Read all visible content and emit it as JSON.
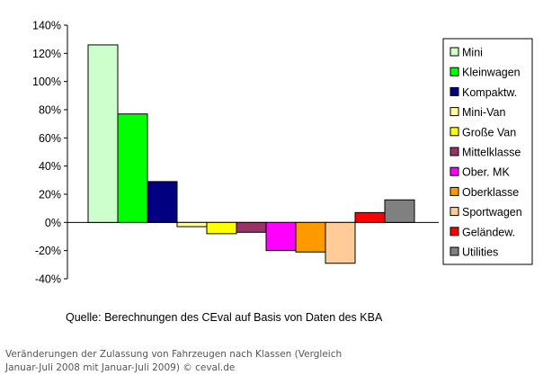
{
  "chart_data": {
    "type": "bar",
    "categories": [
      "Mini",
      "Kleinwagen",
      "Kompaktw.",
      "Mini-Van",
      "Große Van",
      "Mittelklasse",
      "Ober. MK",
      "Oberklasse",
      "Sportwagen",
      "Geländew.",
      "Utilities"
    ],
    "values": [
      126,
      77,
      29,
      -3,
      -8,
      -7,
      -20,
      -21,
      -29,
      7,
      16
    ],
    "colors": [
      "#ccffcc",
      "#00ff00",
      "#000080",
      "#ffff99",
      "#ffff00",
      "#993366",
      "#ff00ff",
      "#ff9900",
      "#ffcc99",
      "#ff0000",
      "#808080"
    ],
    "yticks": [
      "140%",
      "120%",
      "100%",
      "80%",
      "60%",
      "40%",
      "20%",
      "0%",
      "-20%",
      "-40%"
    ],
    "ytick_values": [
      140,
      120,
      100,
      80,
      60,
      40,
      20,
      0,
      -20,
      -40
    ],
    "ylim": [
      -40,
      140
    ],
    "grid": false,
    "legend_position": "right"
  },
  "source_note": "Quelle: Berechnungen des CEval auf Basis von Daten des KBA",
  "caption": {
    "line1": "Veränderungen der Zulassung von Fahrzeugen nach Klassen (Vergleich",
    "line2": "Januar-Juli 2008 mit Januar-Juli 2009) © ceval.de"
  }
}
